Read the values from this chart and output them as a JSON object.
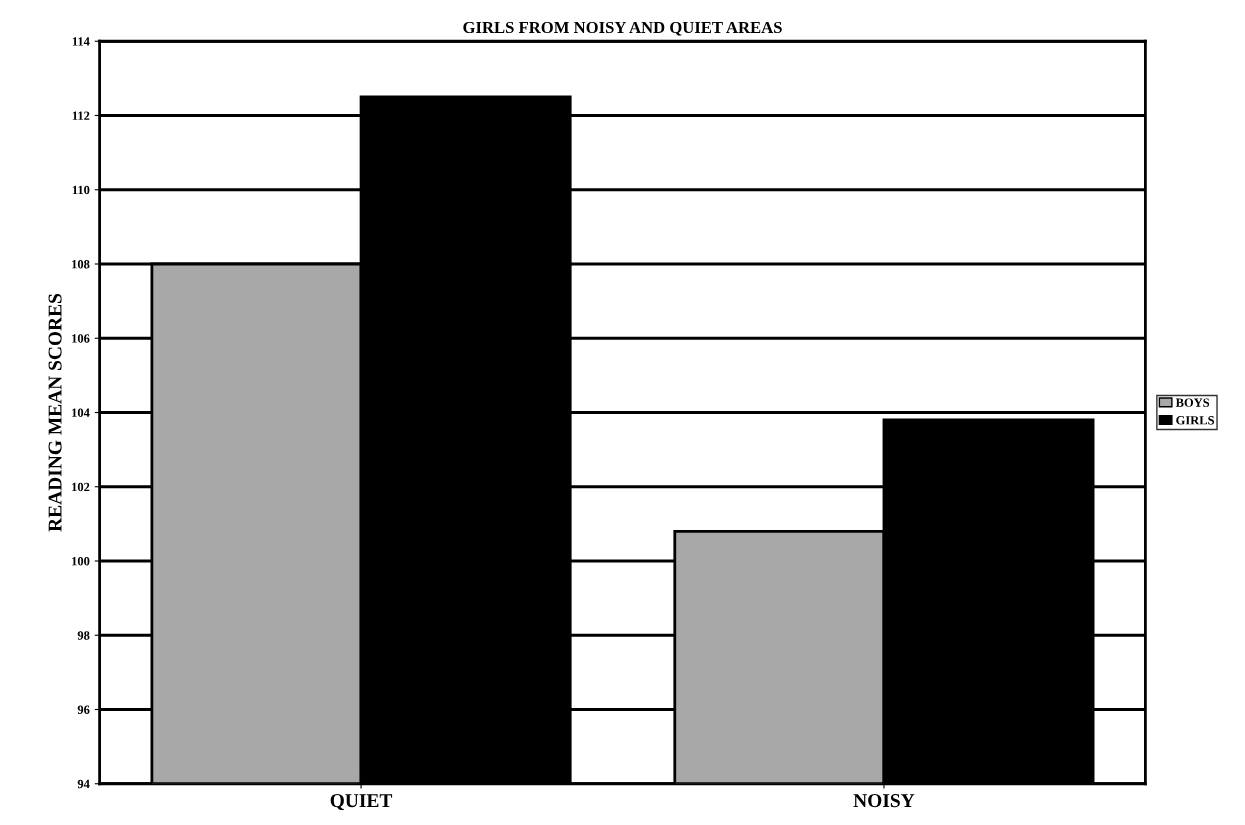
{
  "chart_data": {
    "type": "bar",
    "title": "GIRLS FROM NOISY AND QUIET AREAS",
    "ylabel": "READING MEAN SCORES",
    "categories": [
      "QUIET",
      "NOISY"
    ],
    "series": [
      {
        "name": "BOYS",
        "color": "#a8a8a8",
        "values": [
          108,
          100.8
        ]
      },
      {
        "name": "GIRLS",
        "color": "#000000",
        "values": [
          112.5,
          103.8
        ]
      }
    ],
    "ylim": [
      94,
      114
    ],
    "yticks": [
      94,
      96,
      98,
      100,
      102,
      104,
      106,
      108,
      110,
      112,
      114
    ],
    "grid": "y",
    "legend": "right"
  }
}
